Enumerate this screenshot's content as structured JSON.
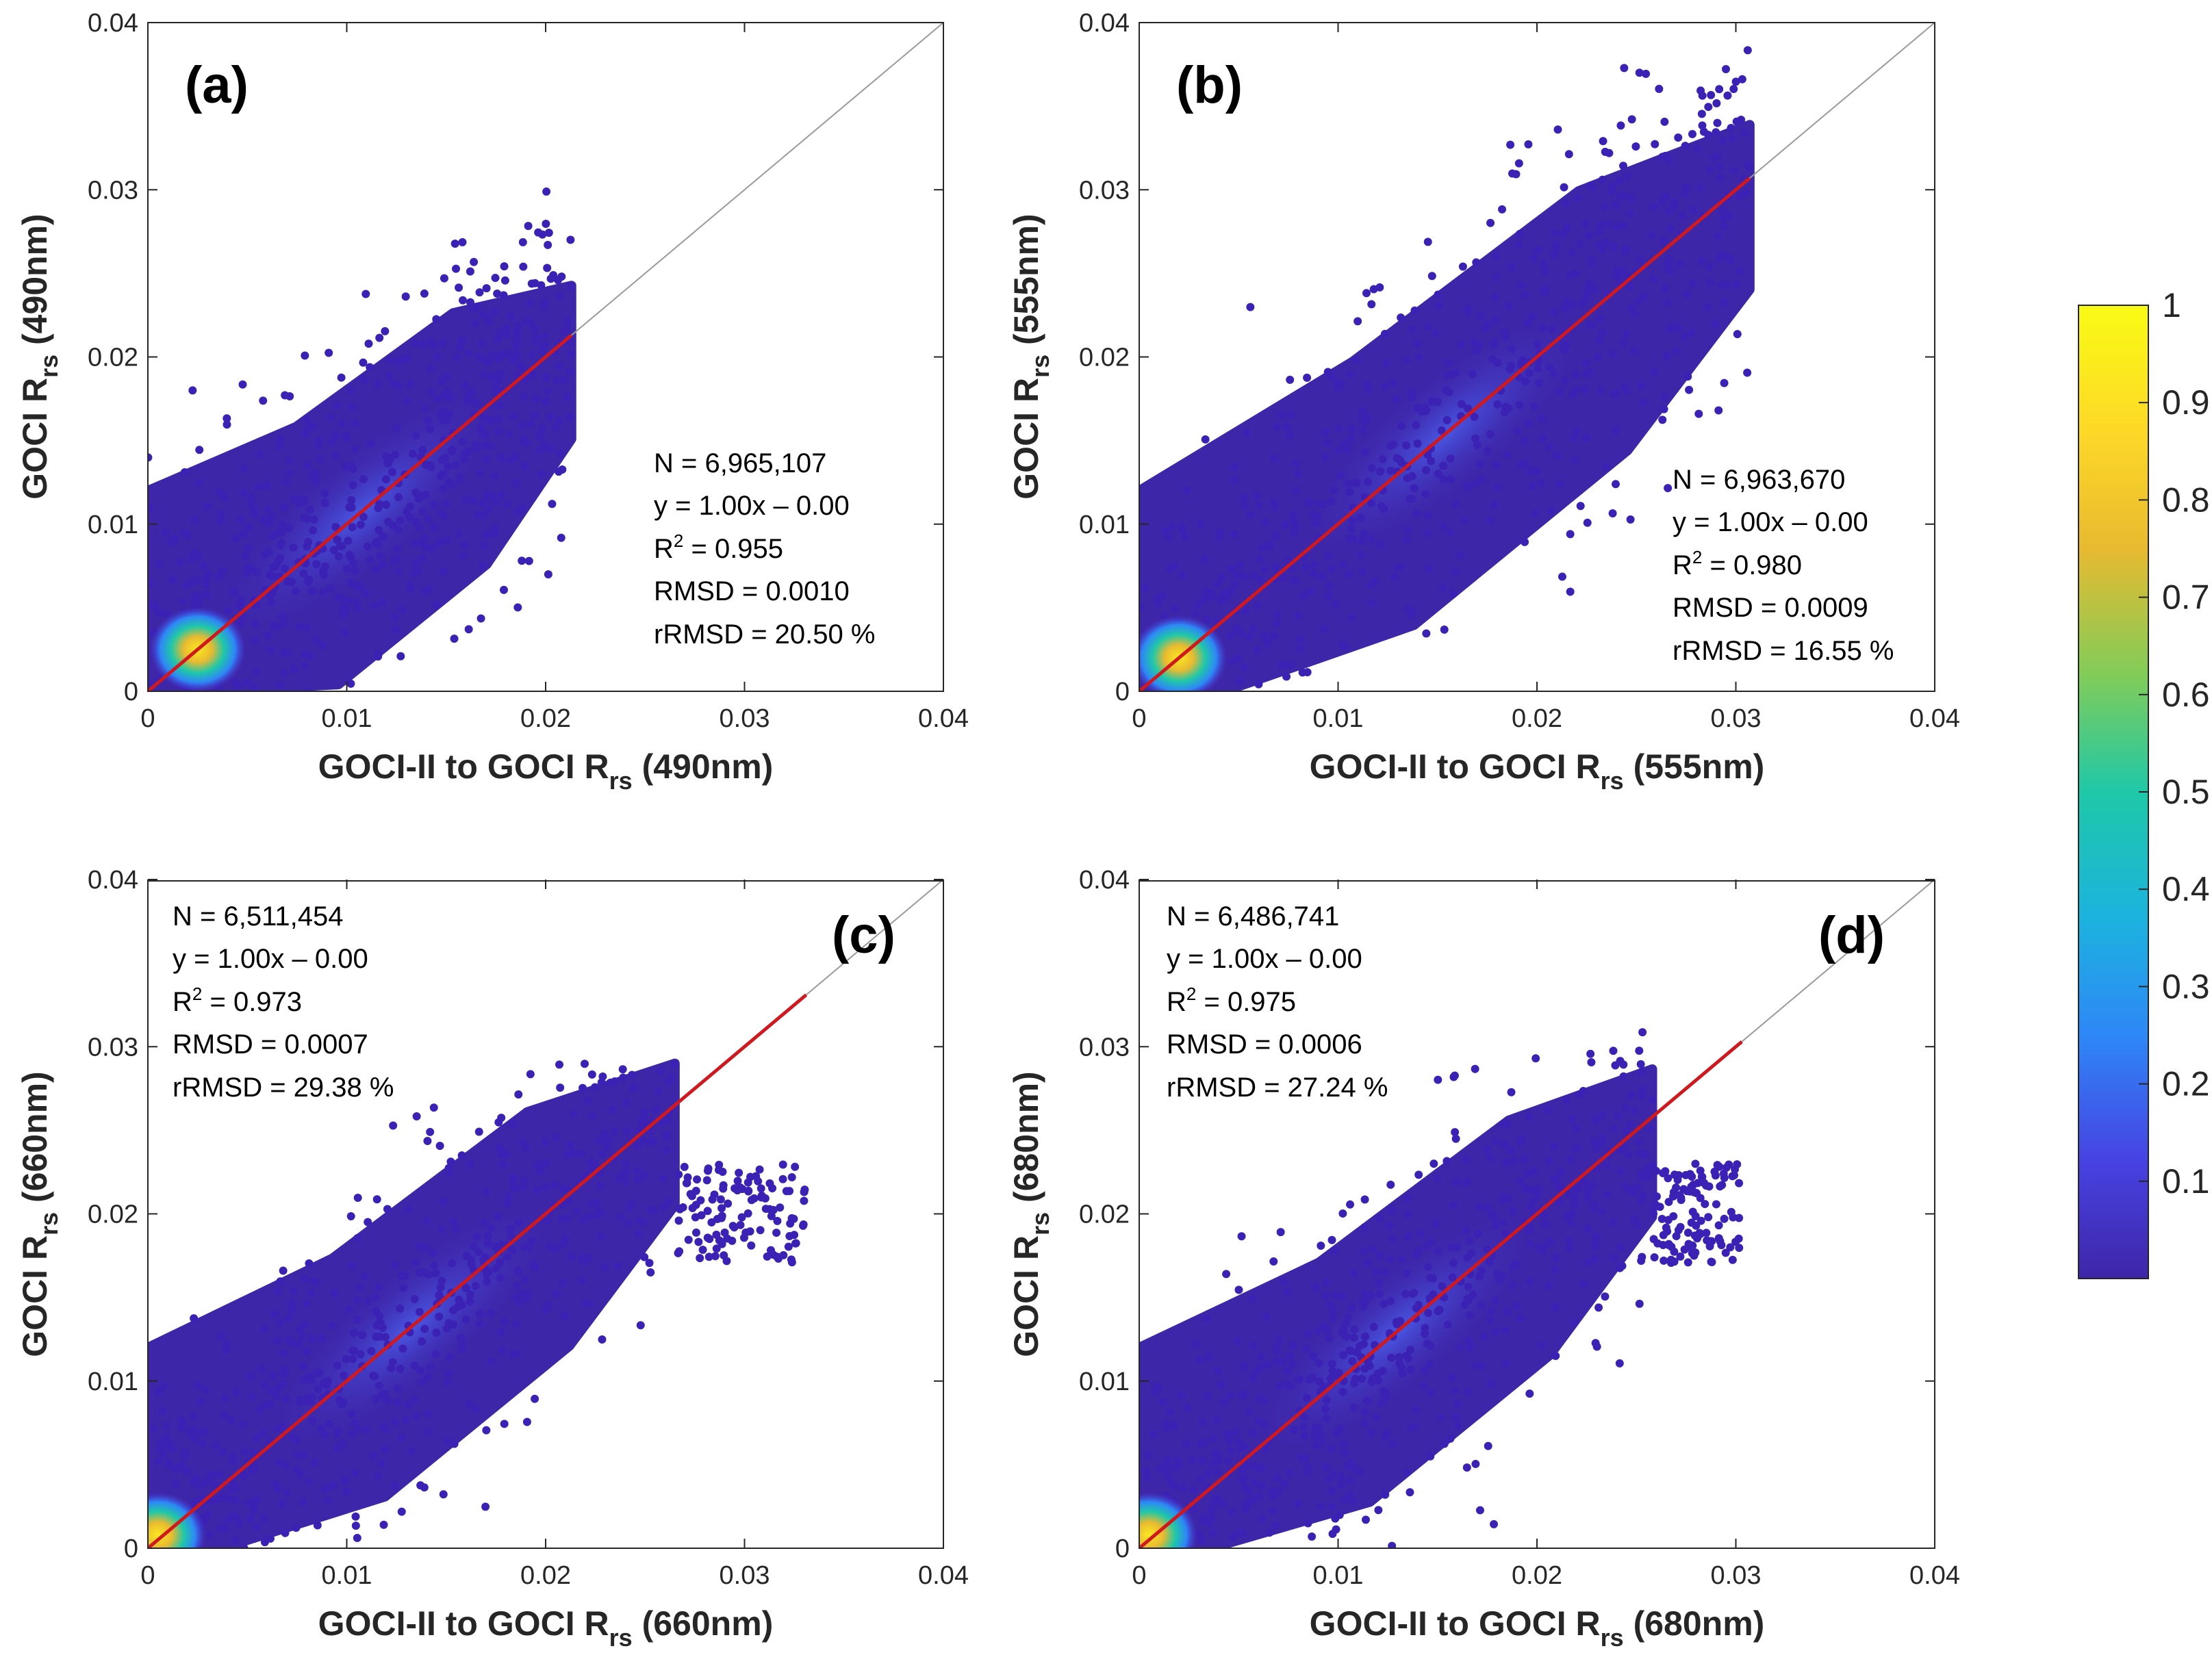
{
  "colorbar": {
    "ticks": [
      "0.1",
      "0.2",
      "0.3",
      "0.4",
      "0.5",
      "0.6",
      "0.7",
      "0.8",
      "0.9",
      "1"
    ],
    "tick_values": [
      0.1,
      0.2,
      0.3,
      0.4,
      0.5,
      0.6,
      0.7,
      0.8,
      0.9,
      1
    ],
    "range": [
      0,
      1
    ],
    "colormap": "parula",
    "colors": [
      "#3e26a8",
      "#4742e2",
      "#2e87f7",
      "#1cb3de",
      "#1fc8a8",
      "#81cc59",
      "#e8ba30",
      "#fdd827",
      "#f9fb14"
    ]
  },
  "chart_data": [
    {
      "type": "scatter",
      "panel": "(a)",
      "xlabel": "GOCI-II to GOCI R",
      "xlabel_sub": "rs",
      "xlabel_suffix": " (490nm)",
      "ylabel": "GOCI R",
      "ylabel_sub": "rs",
      "ylabel_suffix": " (490nm)",
      "xlim": [
        0,
        0.04
      ],
      "ylim": [
        0,
        0.04
      ],
      "xticks": [
        "0",
        "0.01",
        "0.02",
        "0.03",
        "0.04"
      ],
      "yticks": [
        "0",
        "0.01",
        "0.02",
        "0.03",
        "0.04"
      ],
      "stats": {
        "n": "N = 6,965,107",
        "eq": "y = 1.00x – 0.00",
        "r2_prefix": "R",
        "r2_suffix": " = 0.955",
        "rmsd": "RMSD = 0.0010",
        "rrmsd": "rRMSD = 20.50 %"
      },
      "cloud": {
        "xmax": 0.0213,
        "ymax": 0.0303,
        "spread": 0.0054,
        "hot_x": 0.0025,
        "hot_y": 0.0025
      },
      "fit_line": {
        "slope": 1.0,
        "intercept": 0.0,
        "x_range": [
          0,
          0.0213
        ]
      },
      "one_to_one": [
        0,
        0.04
      ]
    },
    {
      "type": "scatter",
      "panel": "(b)",
      "xlabel": "GOCI-II to GOCI R",
      "xlabel_sub": "rs",
      "xlabel_suffix": " (555nm)",
      "ylabel": "GOCI R",
      "ylabel_sub": "rs",
      "ylabel_suffix": " (555nm)",
      "xlim": [
        0,
        0.04
      ],
      "ylim": [
        0,
        0.04
      ],
      "xticks": [
        "0",
        "0.01",
        "0.02",
        "0.03",
        "0.04"
      ],
      "yticks": [
        "0",
        "0.01",
        "0.02",
        "0.03",
        "0.04"
      ],
      "stats": {
        "n": "N = 6,963,670",
        "eq": "y = 1.00x – 0.00",
        "r2_prefix": "R",
        "r2_suffix": " = 0.980",
        "rmsd": "RMSD = 0.0009",
        "rrmsd": "rRMSD = 16.55 %"
      },
      "cloud": {
        "xmax": 0.0307,
        "ymax": 0.0388,
        "spread": 0.0058,
        "hot_x": 0.002,
        "hot_y": 0.002
      },
      "fit_line": {
        "slope": 1.0,
        "intercept": 0.0,
        "x_range": [
          0,
          0.0307
        ]
      },
      "one_to_one": [
        0,
        0.04
      ]
    },
    {
      "type": "scatter",
      "panel": "(c)",
      "xlabel": "GOCI-II to GOCI R",
      "xlabel_sub": "rs",
      "xlabel_suffix": " (660nm)",
      "ylabel": "GOCI R",
      "ylabel_sub": "rs",
      "ylabel_suffix": " (660nm)",
      "xlim": [
        0,
        0.04
      ],
      "ylim": [
        0,
        0.04
      ],
      "xticks": [
        "0",
        "0.01",
        "0.02",
        "0.03",
        "0.04"
      ],
      "yticks": [
        "0",
        "0.01",
        "0.02",
        "0.03",
        "0.04"
      ],
      "stats": {
        "n": "N = 6,511,454",
        "eq": "y = 1.00x – 0.00",
        "r2_prefix": "R",
        "r2_suffix": " = 0.973",
        "rmsd": "RMSD = 0.0007",
        "rrmsd": "rRMSD = 29.38 %"
      },
      "cloud": {
        "xmax": 0.0265,
        "ymax": 0.029,
        "spread": 0.0052,
        "hot_x": 0.0005,
        "hot_y": 0.0008
      },
      "fit_line": {
        "slope": 1.0,
        "intercept": 0.0,
        "x_range": [
          0,
          0.0331
        ]
      },
      "one_to_one": [
        0,
        0.04
      ]
    },
    {
      "type": "scatter",
      "panel": "(d)",
      "xlabel": "GOCI-II to GOCI R",
      "xlabel_sub": "rs",
      "xlabel_suffix": " (680nm)",
      "ylabel": "GOCI R",
      "ylabel_sub": "rs",
      "ylabel_suffix": " (680nm)",
      "xlim": [
        0,
        0.04
      ],
      "ylim": [
        0,
        0.04
      ],
      "xticks": [
        "0",
        "0.01",
        "0.02",
        "0.03",
        "0.04"
      ],
      "yticks": [
        "0",
        "0.01",
        "0.02",
        "0.03",
        "0.04"
      ],
      "stats": {
        "n": "N = 6,486,741",
        "eq": "y = 1.00x – 0.00",
        "r2_prefix": "R",
        "r2_suffix": " = 0.975",
        "rmsd": "RMSD = 0.0006",
        "rrmsd": "rRMSD = 27.24 %"
      },
      "cloud": {
        "xmax": 0.0258,
        "ymax": 0.0312,
        "spread": 0.0052,
        "hot_x": 0.0005,
        "hot_y": 0.0008
      },
      "fit_line": {
        "slope": 1.0,
        "intercept": 0.0,
        "x_range": [
          0,
          0.0303
        ]
      },
      "one_to_one": [
        0,
        0.04
      ]
    }
  ]
}
